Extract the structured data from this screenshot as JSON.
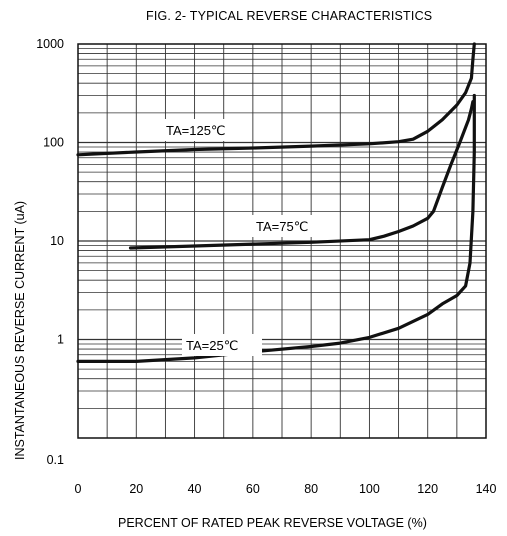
{
  "chart_data": {
    "type": "line",
    "title": "FIG. 2- TYPICAL REVERSE CHARACTERISTICS",
    "xlabel": "PERCENT OF RATED PEAK REVERSE VOLTAGE (%)",
    "ylabel": "INSTANTANEOUS REVERSE CURRENT (uA)",
    "xlim": [
      0,
      140
    ],
    "ylim": [
      0.1,
      1000
    ],
    "y_scale": "log",
    "grid": true,
    "x_ticks": [
      "0",
      "20",
      "40",
      "60",
      "80",
      "100",
      "120",
      "140"
    ],
    "y_ticks": [
      "1000",
      "100",
      "10",
      "1",
      "0.1"
    ],
    "series": [
      {
        "name": "TA=125℃",
        "x": [
          0,
          20,
          40,
          60,
          80,
          100,
          110,
          115,
          120,
          125,
          130,
          133,
          135,
          135.5,
          136
        ],
        "y": [
          75,
          80,
          85,
          88,
          92,
          97,
          102,
          108,
          130,
          170,
          240,
          320,
          450,
          700,
          1000
        ]
      },
      {
        "name": "TA=75℃",
        "x": [
          18,
          40,
          60,
          80,
          100,
          105,
          110,
          115,
          120,
          122,
          125,
          128,
          131,
          134,
          135,
          135.5
        ],
        "y": [
          8.5,
          8.9,
          9.3,
          9.7,
          10.3,
          11.2,
          12.5,
          14.2,
          17,
          20,
          35,
          60,
          100,
          170,
          220,
          260
        ]
      },
      {
        "name": "TA=25℃",
        "x": [
          0,
          20,
          40,
          60,
          80,
          90,
          100,
          110,
          120,
          125,
          130,
          133,
          134.5,
          135.5,
          136,
          136
        ],
        "y": [
          0.6,
          0.6,
          0.65,
          0.75,
          0.85,
          0.92,
          1.05,
          1.3,
          1.8,
          2.3,
          2.8,
          3.5,
          6,
          20,
          80,
          300
        ]
      }
    ],
    "annotations": [
      "TA=125℃",
      "TA=75℃",
      "TA=25℃"
    ]
  }
}
